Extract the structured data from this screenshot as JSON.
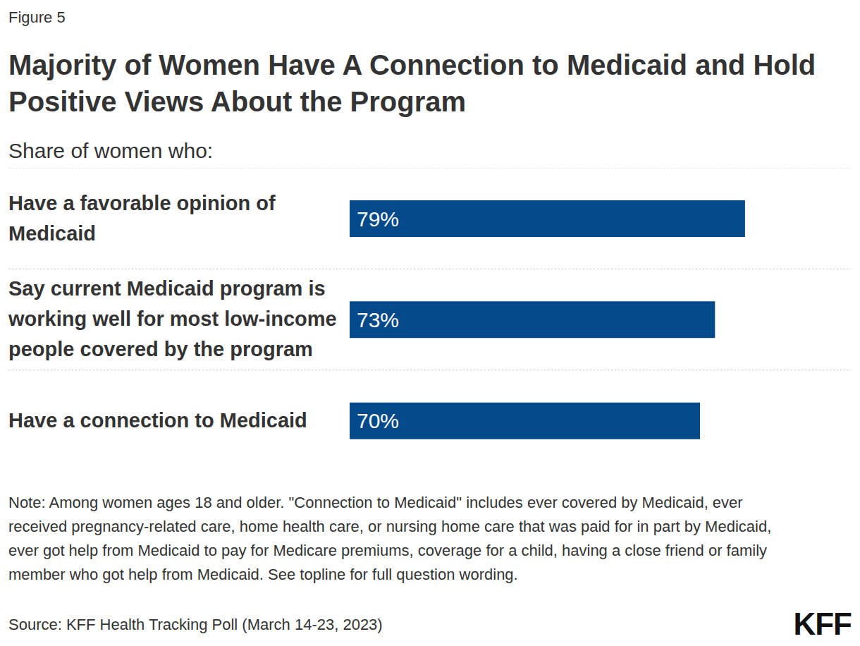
{
  "chart_data": {
    "type": "bar",
    "orientation": "horizontal",
    "figure": "Figure 5",
    "title": "Majority of Women Have A Connection to Medicaid and Hold Positive Views About the Program",
    "subtitle": "Share of women who:",
    "categories": [
      "Have a favorable opinion of Medicaid",
      "Say current Medicaid program is working well for most low-income people covered by the program",
      "Have a connection to Medicaid"
    ],
    "values": [
      79,
      73,
      70
    ],
    "value_labels": [
      "79%",
      "73%",
      "70%"
    ],
    "color": "#044a8b",
    "xlim": [
      0,
      100
    ],
    "data_labels": true,
    "tick_labels": "y",
    "grid": false,
    "note": "Note: Among women ages 18 and older. \"Connection to Medicaid\" includes ever covered by Medicaid, ever received pregnancy-related care, home health care, or nursing home care that was paid for in part by Medicaid, ever got help from Medicaid to pay for Medicare premiums, coverage for a child, having a close friend or family member who got help from Medicaid. See topline for full question wording.",
    "source": "Source: KFF Health Tracking Poll (March 14-23, 2023)",
    "logo": "KFF"
  }
}
